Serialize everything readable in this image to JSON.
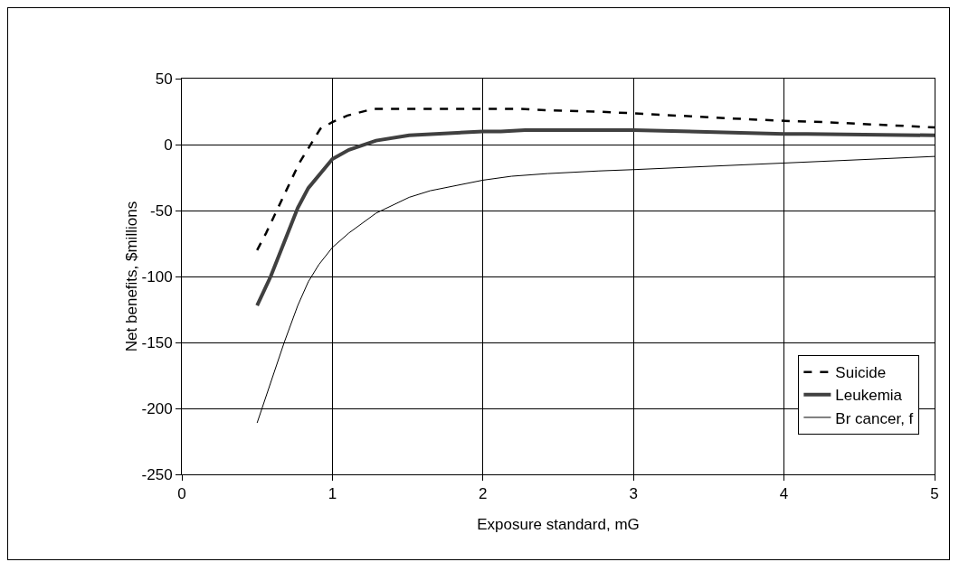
{
  "chart_data": {
    "type": "line",
    "xlabel": "Exposure standard, mG",
    "ylabel": "Net benefits, $millions",
    "xlim": [
      0,
      5
    ],
    "xticks": [
      0,
      1,
      2,
      3,
      4,
      5
    ],
    "ylim": [
      -250,
      50
    ],
    "yticks": [
      -250,
      -200,
      -150,
      -100,
      -50,
      0,
      50
    ],
    "grid": true,
    "legend": "bottom right",
    "marker": "none",
    "series": [
      {
        "name": "Suicide",
        "color": "#000000",
        "line_style": "dashed",
        "x": [
          0.5,
          0.56,
          0.78,
          0.92,
          1.0,
          1.1,
          1.27,
          2.25,
          2.43,
          2.77,
          3.79,
          4.0,
          4.27,
          5.0
        ],
        "values": [
          -80,
          -67,
          -14,
          12,
          17,
          22,
          27,
          27,
          26,
          25,
          19,
          18,
          17,
          13
        ]
      },
      {
        "name": "Leukemia",
        "color": "#404040",
        "line_style": "solid",
        "x": [
          0.5,
          0.59,
          0.77,
          0.84,
          1.0,
          1.11,
          1.29,
          1.51,
          2.0,
          2.12,
          2.28,
          3.0,
          4.0,
          4.15,
          5.0
        ],
        "values": [
          -122,
          -100,
          -48,
          -33,
          -11,
          -4,
          3,
          7,
          10,
          10,
          11,
          11,
          8,
          8,
          7
        ]
      },
      {
        "name": "Br cancer, f",
        "color": "#000000",
        "line_style": "solid",
        "x": [
          0.5,
          0.68,
          0.77,
          0.84,
          0.91,
          1.0,
          1.11,
          1.29,
          1.51,
          1.65,
          2.0,
          2.19,
          2.43,
          2.77,
          3.0,
          4.0,
          5.0
        ],
        "values": [
          -211,
          -150,
          -122,
          -104,
          -91,
          -78,
          -67,
          -52,
          -40,
          -35,
          -27,
          -24,
          -22,
          -20,
          -19,
          -14,
          -9
        ]
      }
    ]
  }
}
